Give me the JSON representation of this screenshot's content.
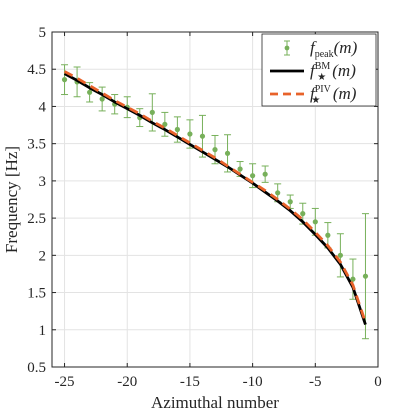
{
  "chart_data": {
    "type": "line",
    "xlabel": "Azimuthal number",
    "ylabel": "Frequency [Hz]",
    "xlim": [
      -26,
      0
    ],
    "ylim": [
      0.5,
      5
    ],
    "xticks": [
      -25,
      -20,
      -15,
      -10,
      -5,
      0
    ],
    "yticks": [
      0.5,
      1,
      1.5,
      2,
      2.5,
      3,
      3.5,
      4,
      4.5,
      5
    ],
    "xtick_labels": [
      "-25",
      "-20",
      "-15",
      "-10",
      "-5",
      "0"
    ],
    "ytick_labels": [
      "0.5",
      "1",
      "1.5",
      "2",
      "2.5",
      "3",
      "3.5",
      "4",
      "4.5",
      "5"
    ],
    "grid": true,
    "legend_position": "top-right",
    "series": [
      {
        "name_base": "f",
        "name_sub": "peak",
        "name_sup": "",
        "name_arg": "(m)",
        "kind": "errorbar",
        "color": "#77b05a",
        "x": [
          -25,
          -24,
          -23,
          -22,
          -21,
          -20,
          -19,
          -18,
          -17,
          -16,
          -15,
          -14,
          -13,
          -12,
          -11,
          -10,
          -9,
          -8,
          -7,
          -6,
          -5,
          -4,
          -3,
          -2,
          -1
        ],
        "y": [
          4.36,
          4.33,
          4.19,
          4.1,
          4.03,
          3.99,
          3.85,
          3.92,
          3.76,
          3.69,
          3.63,
          3.6,
          3.42,
          3.37,
          3.16,
          3.07,
          3.09,
          2.84,
          2.72,
          2.56,
          2.45,
          2.27,
          2.0,
          1.68,
          1.72
        ],
        "err": [
          0.2,
          0.2,
          0.13,
          0.16,
          0.13,
          0.14,
          0.12,
          0.25,
          0.16,
          0.17,
          0.19,
          0.28,
          0.19,
          0.25,
          0.1,
          0.16,
          0.11,
          0.12,
          0.09,
          0.14,
          0.18,
          0.17,
          0.29,
          0.27,
          0.84
        ]
      },
      {
        "name_base": "f",
        "name_sub": "★",
        "name_sup": "BM",
        "name_arg": "(m)",
        "kind": "line",
        "color": "#000000",
        "x": [
          -25,
          -24,
          -23,
          -22,
          -21,
          -20,
          -19,
          -18,
          -17,
          -16,
          -15,
          -14,
          -13,
          -12,
          -11,
          -10,
          -9,
          -8,
          -7,
          -6,
          -5,
          -4,
          -3,
          -2,
          -1
        ],
        "y": [
          4.44,
          4.35,
          4.25,
          4.16,
          4.06,
          3.97,
          3.88,
          3.78,
          3.69,
          3.59,
          3.49,
          3.39,
          3.29,
          3.19,
          3.08,
          2.97,
          2.85,
          2.73,
          2.6,
          2.45,
          2.28,
          2.1,
          1.88,
          1.57,
          1.07
        ]
      },
      {
        "name_base": "f",
        "name_sub": "★",
        "name_sup": "PIV",
        "name_arg": "(m)",
        "kind": "dashed",
        "color": "#e8622a",
        "x": [
          -25,
          -24,
          -23,
          -22,
          -21,
          -20,
          -19,
          -18,
          -17,
          -16,
          -15,
          -14,
          -13,
          -12,
          -11,
          -10,
          -9,
          -8,
          -7,
          -6,
          -5,
          -4,
          -3,
          -2,
          -1
        ],
        "y": [
          4.47,
          4.38,
          4.28,
          4.18,
          4.08,
          3.99,
          3.9,
          3.8,
          3.71,
          3.61,
          3.51,
          3.41,
          3.31,
          3.2,
          3.09,
          2.98,
          2.87,
          2.75,
          2.62,
          2.48,
          2.31,
          2.13,
          1.91,
          1.6,
          1.1
        ]
      }
    ]
  }
}
